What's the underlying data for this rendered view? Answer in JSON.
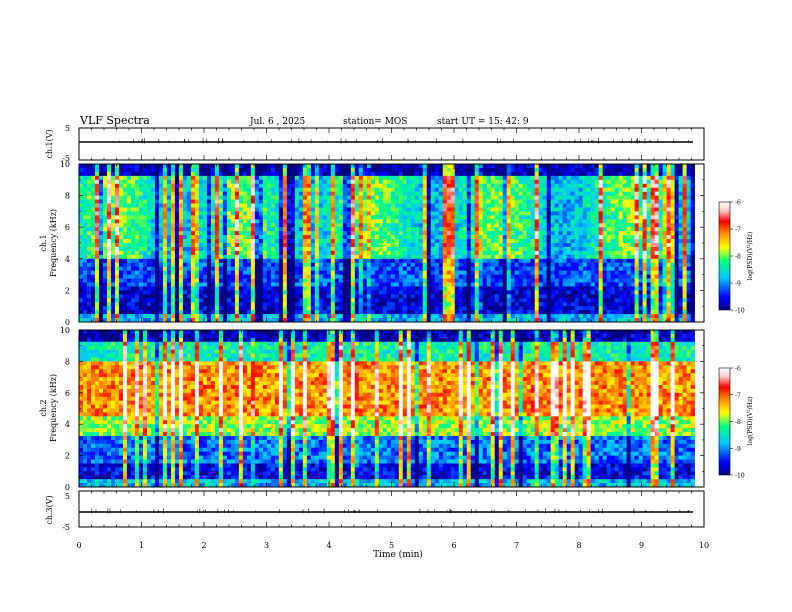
{
  "header": {
    "title": "VLF Spectra",
    "date": "Jul. 6 , 2025",
    "station": "station= MOS",
    "start": "start UT = 15: 42: 9"
  },
  "chart_data": [
    {
      "type": "line",
      "name": "waveform-ch1",
      "ylabel": "ch.1(V)",
      "ylim": [
        -5,
        5
      ],
      "yticks": [
        "5",
        "-5"
      ],
      "xlim": [
        0,
        10
      ],
      "description_values": {
        "baseline": 0
      }
    },
    {
      "type": "heatmap",
      "name": "spectrogram-ch1",
      "ylabel_top": "ch.1",
      "ylabel": "Frequency (kHz)",
      "ylim": [
        0,
        10
      ],
      "yticks": [
        "0",
        "2",
        "4",
        "6",
        "8",
        "10"
      ],
      "xlim": [
        0,
        9.85
      ],
      "colorbar": {
        "label": "log(PSD)(V²/Hz)",
        "range": [
          -10,
          -6
        ],
        "ticks": [
          "-6",
          "-7",
          "-8",
          "-9",
          "-10"
        ]
      }
    },
    {
      "type": "heatmap",
      "name": "spectrogram-ch2",
      "ylabel_top": "ch.2",
      "ylabel": "Frequency (kHz)",
      "ylim": [
        0,
        10
      ],
      "yticks": [
        "0",
        "2",
        "4",
        "6",
        "8",
        "10"
      ],
      "xlim": [
        0,
        9.85
      ],
      "colorbar": {
        "label": "log(PSD)(V²/Hz)",
        "range": [
          -10,
          -6
        ],
        "ticks": [
          "-6",
          "-7",
          "-8",
          "-9",
          "-10"
        ]
      }
    },
    {
      "type": "line",
      "name": "waveform-ch3",
      "ylabel": "ch.3(V)",
      "ylim": [
        -5,
        5
      ],
      "yticks": [
        "5",
        "-5"
      ],
      "xlim": [
        0,
        10
      ],
      "description_values": {
        "baseline": 0
      }
    }
  ],
  "xaxis": {
    "label": "Time (min)",
    "ticks": [
      "0",
      "1",
      "2",
      "3",
      "4",
      "5",
      "6",
      "7",
      "8",
      "9",
      "10"
    ]
  },
  "colors": {
    "scale": [
      "#000080",
      "#0000ff",
      "#00c8ff",
      "#00ff80",
      "#ffff00",
      "#ff8000",
      "#ff0000",
      "#ffc8c8",
      "#ffffff"
    ]
  }
}
